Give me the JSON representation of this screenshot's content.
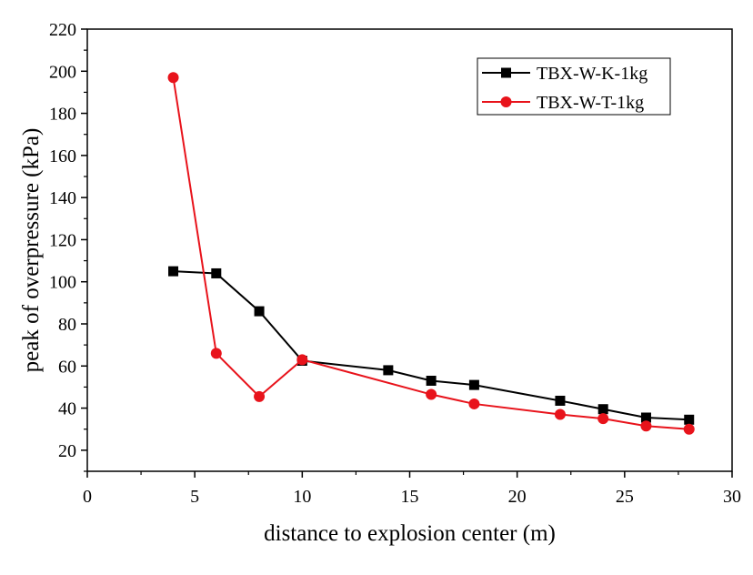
{
  "chart_data": {
    "type": "line",
    "title": "",
    "xlabel": "distance to explosion center (m)",
    "ylabel": "peak of overpressure (kPa)",
    "xlim": [
      0,
      30
    ],
    "ylim": [
      10,
      220
    ],
    "x_ticks": [
      0,
      5,
      10,
      15,
      20,
      25,
      30
    ],
    "y_ticks": [
      20,
      40,
      60,
      80,
      100,
      120,
      140,
      160,
      180,
      200,
      220
    ],
    "grid": false,
    "legend_position": "top-right",
    "series": [
      {
        "name": "TBX-W-K-1kg",
        "color": "#000000",
        "marker": "square",
        "x": [
          4,
          6,
          8,
          10,
          14,
          16,
          18,
          22,
          24,
          26,
          28
        ],
        "values": [
          105,
          104,
          86,
          62.5,
          58,
          53,
          51,
          43.5,
          39.5,
          35.5,
          34.5
        ]
      },
      {
        "name": "TBX-W-T-1kg",
        "color": "#e8131b",
        "marker": "circle",
        "x": [
          4,
          6,
          8,
          10,
          16,
          18,
          22,
          24,
          26,
          28
        ],
        "values": [
          197,
          66,
          45.5,
          63,
          46.5,
          42,
          37,
          35,
          31.5,
          30
        ]
      }
    ]
  }
}
